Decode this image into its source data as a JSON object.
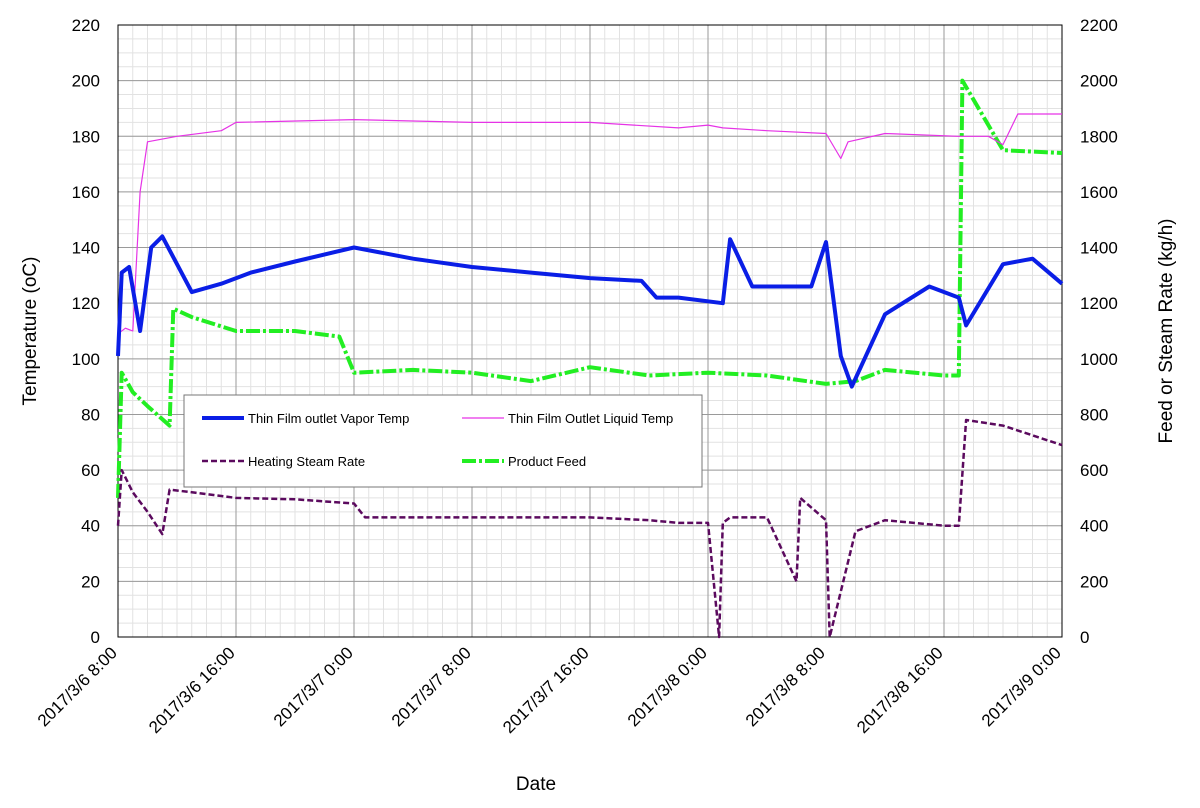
{
  "chart_data": {
    "type": "line",
    "xlabel": "Date",
    "ylabel_left": "Temperature (oC)",
    "ylabel_right": "Feed or Steam Rate (kg/h)",
    "xlim": [
      "2017/3/6 8:00",
      "2017/3/9 0:00"
    ],
    "ylim_left": [
      0,
      220
    ],
    "ylim_right": [
      0,
      2200
    ],
    "x_tick_labels": [
      "2017/3/6 8:00",
      "2017/3/6 16:00",
      "2017/3/7 0:00",
      "2017/3/7 8:00",
      "2017/3/7 16:00",
      "2017/3/8 0:00",
      "2017/3/8 8:00",
      "2017/3/8 16:00",
      "2017/3/9 0:00"
    ],
    "y_left_ticks": [
      "0",
      "20",
      "40",
      "60",
      "80",
      "100",
      "120",
      "140",
      "160",
      "180",
      "200",
      "220"
    ],
    "y_right_ticks": [
      "0",
      "200",
      "400",
      "600",
      "800",
      "1000",
      "1200",
      "1400",
      "1600",
      "1800",
      "2000",
      "2200"
    ],
    "grid": true,
    "legend_position": "center-left",
    "series": [
      {
        "name": "Thin Film outlet Vapor Temp",
        "axis": "left",
        "color": "#0a1ee6",
        "style": "thick-solid",
        "x": [
          "2017/3/6 8:00",
          "2017/3/6 8:15",
          "2017/3/6 8:45",
          "2017/3/6 9:30",
          "2017/3/6 10:15",
          "2017/3/6 11:00",
          "2017/3/6 13:00",
          "2017/3/6 15:00",
          "2017/3/6 17:00",
          "2017/3/6 20:00",
          "2017/3/7 0:00",
          "2017/3/7 4:00",
          "2017/3/7 8:00",
          "2017/3/7 12:00",
          "2017/3/7 16:00",
          "2017/3/7 19:30",
          "2017/3/7 20:30",
          "2017/3/7 22:00",
          "2017/3/8 1:00",
          "2017/3/8 1:30",
          "2017/3/8 3:00",
          "2017/3/8 5:00",
          "2017/3/8 7:00",
          "2017/3/8 8:00",
          "2017/3/8 9:00",
          "2017/3/8 9:45",
          "2017/3/8 12:00",
          "2017/3/8 15:00",
          "2017/3/8 17:00",
          "2017/3/8 17:30",
          "2017/3/8 20:00",
          "2017/3/8 22:00",
          "2017/3/9 0:00"
        ],
        "y": [
          101,
          131,
          133,
          110,
          140,
          144,
          124,
          127,
          131,
          135,
          140,
          136,
          133,
          131,
          129,
          128,
          122,
          122,
          120,
          143,
          126,
          126,
          126,
          142,
          101,
          90,
          116,
          126,
          122,
          112,
          134,
          136,
          127
        ]
      },
      {
        "name": "Thin Film Outlet Liquid Temp",
        "axis": "left",
        "color": "#e633e6",
        "style": "thin-solid",
        "x": [
          "2017/3/6 8:00",
          "2017/3/6 8:30",
          "2017/3/6 9:00",
          "2017/3/6 9:30",
          "2017/3/6 10:00",
          "2017/3/6 12:00",
          "2017/3/6 15:00",
          "2017/3/6 16:00",
          "2017/3/7 0:00",
          "2017/3/7 8:00",
          "2017/3/7 16:00",
          "2017/3/7 22:00",
          "2017/3/8 0:00",
          "2017/3/8 1:00",
          "2017/3/8 4:00",
          "2017/3/8 8:00",
          "2017/3/8 9:00",
          "2017/3/8 9:30",
          "2017/3/8 12:00",
          "2017/3/8 17:00",
          "2017/3/8 19:00",
          "2017/3/8 20:00",
          "2017/3/8 21:00",
          "2017/3/9 0:00"
        ],
        "y": [
          109,
          111,
          110,
          160,
          178,
          180,
          182,
          185,
          186,
          185,
          185,
          183,
          184,
          183,
          182,
          181,
          172,
          178,
          181,
          180,
          180,
          177,
          188,
          188
        ]
      },
      {
        "name": "Heating Steam Rate",
        "axis": "right",
        "color": "#5b0a5e",
        "style": "dashed",
        "x": [
          "2017/3/6 8:00",
          "2017/3/6 8:15",
          "2017/3/6 9:00",
          "2017/3/6 10:00",
          "2017/3/6 11:00",
          "2017/3/6 11:30",
          "2017/3/6 13:00",
          "2017/3/6 16:00",
          "2017/3/6 20:00",
          "2017/3/7 0:00",
          "2017/3/7 0:45",
          "2017/3/7 4:00",
          "2017/3/7 8:00",
          "2017/3/7 16:00",
          "2017/3/7 20:00",
          "2017/3/7 22:00",
          "2017/3/8 0:00",
          "2017/3/8 0:45",
          "2017/3/8 1:00",
          "2017/3/8 1:30",
          "2017/3/8 4:00",
          "2017/3/8 6:00",
          "2017/3/8 6:15",
          "2017/3/8 8:00",
          "2017/3/8 8:15",
          "2017/3/8 10:00",
          "2017/3/8 12:00",
          "2017/3/8 16:00",
          "2017/3/8 17:00",
          "2017/3/8 17:30",
          "2017/3/8 20:00",
          "2017/3/9 0:00"
        ],
        "y": [
          400,
          600,
          520,
          450,
          370,
          530,
          520,
          500,
          495,
          480,
          430,
          430,
          430,
          430,
          420,
          410,
          410,
          0,
          410,
          430,
          430,
          200,
          500,
          420,
          0,
          380,
          420,
          400,
          400,
          780,
          760,
          690
        ]
      },
      {
        "name": "Product Feed",
        "axis": "right",
        "color": "#22ee22",
        "style": "thick-dashdot",
        "x": [
          "2017/3/6 8:00",
          "2017/3/6 8:15",
          "2017/3/6 9:00",
          "2017/3/6 10:00",
          "2017/3/6 11:30",
          "2017/3/6 11:45",
          "2017/3/6 13:00",
          "2017/3/6 16:00",
          "2017/3/6 20:00",
          "2017/3/6 23:00",
          "2017/3/7 0:00",
          "2017/3/7 4:00",
          "2017/3/7 8:00",
          "2017/3/7 12:00",
          "2017/3/7 16:00",
          "2017/3/7 20:00",
          "2017/3/8 0:00",
          "2017/3/8 4:00",
          "2017/3/8 8:00",
          "2017/3/8 10:00",
          "2017/3/8 12:00",
          "2017/3/8 16:00",
          "2017/3/8 17:00",
          "2017/3/8 17:15",
          "2017/3/8 20:00",
          "2017/3/9 0:00"
        ],
        "y": [
          500,
          950,
          880,
          830,
          760,
          1180,
          1150,
          1100,
          1100,
          1080,
          950,
          960,
          950,
          920,
          970,
          940,
          950,
          940,
          910,
          920,
          960,
          940,
          940,
          2000,
          1750,
          1740
        ]
      }
    ]
  }
}
